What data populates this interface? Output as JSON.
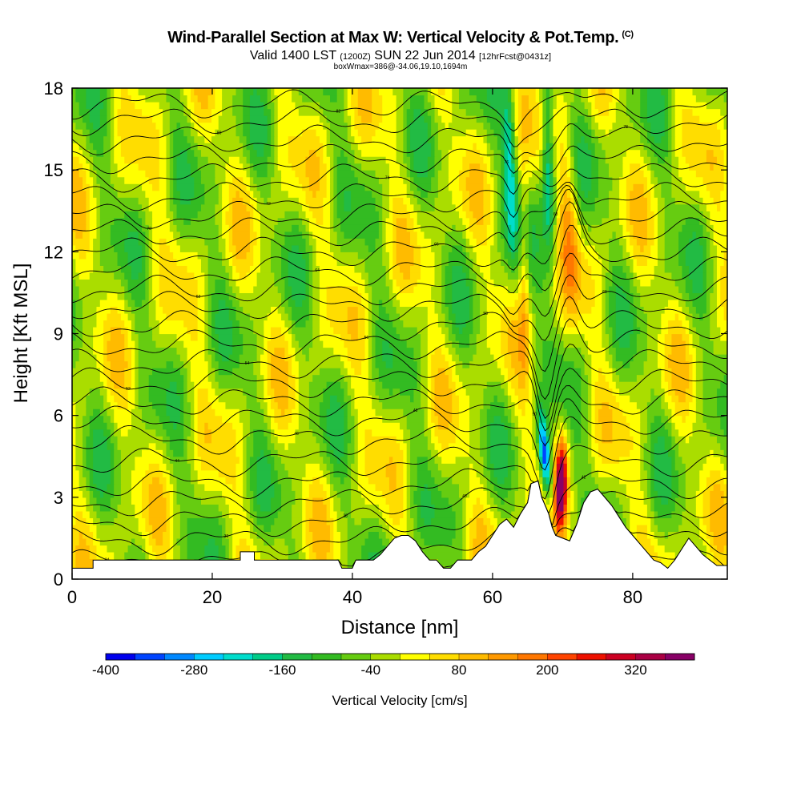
{
  "header": {
    "title": "Wind-Parallel Section at Max W: Vertical Velocity & Pot.Temp.",
    "copyright": "(C)",
    "valid_prefix": "Valid 1400 LST",
    "valid_utc": "(1200Z)",
    "valid_date": "SUN 22 Jun 2014",
    "forecast": "[12hrFcst@0431z]",
    "box_info": "boxWmax=386@-34.06,19.10,1694m"
  },
  "chart_data": {
    "type": "heatmap",
    "xlabel": "Distance [nm]",
    "ylabel": "Height [Kft MSL]",
    "xlim": [
      0,
      93.5
    ],
    "ylim": [
      0,
      18
    ],
    "xticks": [
      "0",
      "20",
      "40",
      "60",
      "80"
    ],
    "xtick_values": [
      0,
      20,
      40,
      60,
      80
    ],
    "yticks": [
      "0",
      "3",
      "6",
      "9",
      "12",
      "15",
      "18"
    ],
    "ytick_values": [
      0,
      3,
      6,
      9,
      12,
      15,
      18
    ],
    "colorbar": {
      "label": "Vertical Velocity [cm/s]",
      "range": [
        -400,
        400
      ],
      "step": 40,
      "tick_labels": [
        "-400",
        "-280",
        "-160",
        "-40",
        "80",
        "200",
        "320"
      ],
      "tick_values": [
        -400,
        -280,
        -160,
        -40,
        80,
        200,
        320
      ],
      "colors": [
        "#0000ee",
        "#0044ff",
        "#0088ff",
        "#00ccff",
        "#00ddcc",
        "#00cc88",
        "#22bb44",
        "#33bb22",
        "#66cc11",
        "#aadd00",
        "#ffff00",
        "#ffdd00",
        "#ffbb00",
        "#ff9900",
        "#ff7700",
        "#ff4400",
        "#ee1100",
        "#cc0022",
        "#aa0044",
        "#880066"
      ]
    },
    "background_value": -20,
    "features": [
      {
        "kind": "downdraft",
        "x": 67.5,
        "z": 4.5,
        "w": -380
      },
      {
        "kind": "updraft",
        "x": 69.8,
        "z": 3.5,
        "w": 386
      },
      {
        "kind": "updraft_column",
        "x": 71,
        "z": 13,
        "w": 120
      },
      {
        "kind": "downdraft_column",
        "x": 62.5,
        "z": 15,
        "w": -180
      },
      {
        "kind": "downdraft_column",
        "x": 68,
        "z": 15,
        "w": -200
      }
    ],
    "terrain": [
      [
        0,
        0.4
      ],
      [
        3,
        0.4
      ],
      [
        3,
        0.7
      ],
      [
        8,
        0.7
      ],
      [
        8,
        0.7
      ],
      [
        16,
        0.7
      ],
      [
        20,
        0.7
      ],
      [
        20,
        0.7
      ],
      [
        22,
        0.7
      ],
      [
        23,
        0.7
      ],
      [
        24,
        0.7
      ],
      [
        24,
        1.0
      ],
      [
        26,
        1.0
      ],
      [
        26,
        0.7
      ],
      [
        30,
        0.7
      ],
      [
        33,
        0.7
      ],
      [
        34,
        0.7
      ],
      [
        36,
        0.7
      ],
      [
        38,
        0.7
      ],
      [
        38.5,
        0.4
      ],
      [
        40,
        0.4
      ],
      [
        40.5,
        0.7
      ],
      [
        43,
        0.7
      ],
      [
        44,
        0.9
      ],
      [
        45,
        1.2
      ],
      [
        46,
        1.5
      ],
      [
        47,
        1.6
      ],
      [
        48,
        1.6
      ],
      [
        49,
        1.4
      ],
      [
        50,
        1.0
      ],
      [
        51,
        0.7
      ],
      [
        52,
        0.7
      ],
      [
        53,
        0.4
      ],
      [
        54,
        0.4
      ],
      [
        55,
        0.7
      ],
      [
        56,
        0.7
      ],
      [
        57,
        0.7
      ],
      [
        58,
        1.0
      ],
      [
        59,
        1.2
      ],
      [
        60,
        1.6
      ],
      [
        61,
        2.0
      ],
      [
        62,
        2.2
      ],
      [
        63,
        1.9
      ],
      [
        64,
        2.4
      ],
      [
        65,
        2.8
      ],
      [
        65.5,
        3.5
      ],
      [
        66.5,
        3.6
      ],
      [
        67,
        3.0
      ],
      [
        68,
        2.4
      ],
      [
        68.5,
        1.9
      ],
      [
        69,
        1.6
      ],
      [
        70,
        1.5
      ],
      [
        71,
        1.4
      ],
      [
        72,
        2.0
      ],
      [
        73,
        2.8
      ],
      [
        74,
        3.2
      ],
      [
        75,
        3.3
      ],
      [
        76,
        3.0
      ],
      [
        77,
        2.7
      ],
      [
        78,
        2.3
      ],
      [
        79,
        1.9
      ],
      [
        80,
        1.6
      ],
      [
        81,
        1.3
      ],
      [
        82,
        1.0
      ],
      [
        83,
        0.7
      ],
      [
        84,
        0.6
      ],
      [
        85,
        0.4
      ],
      [
        86,
        0.7
      ],
      [
        87,
        1.1
      ],
      [
        88,
        1.5
      ],
      [
        89,
        1.2
      ],
      [
        90,
        0.9
      ],
      [
        91,
        0.7
      ],
      [
        92,
        0.5
      ],
      [
        93.5,
        0.5
      ]
    ],
    "theta_contours": [
      {
        "label": "34",
        "z": 0.6
      },
      {
        "label": "36",
        "z": 1.4
      },
      {
        "label": "38",
        "z": 2.1
      },
      {
        "label": "40",
        "z": 2.8
      },
      {
        "label": "42",
        "z": 3.5
      },
      {
        "label": "44",
        "z": 4.3
      },
      {
        "label": "46",
        "z": 5.1
      },
      {
        "label": "48",
        "z": 5.8
      },
      {
        "label": "50",
        "z": 6.5
      },
      {
        "label": "52",
        "z": 7.2
      },
      {
        "label": "54",
        "z": 7.9
      },
      {
        "label": "56",
        "z": 8.6
      },
      {
        "label": "58",
        "z": 9.3
      },
      {
        "label": "60",
        "z": 10.0
      },
      {
        "label": "62",
        "z": 10.6
      },
      {
        "label": "64",
        "z": 11.3
      },
      {
        "label": "66",
        "z": 12.0
      },
      {
        "label": "68",
        "z": 12.7
      },
      {
        "label": "70",
        "z": 13.3
      },
      {
        "label": "72",
        "z": 14.0
      },
      {
        "label": "74",
        "z": 14.7
      },
      {
        "label": "76",
        "z": 15.4
      },
      {
        "label": "78",
        "z": 16.1
      },
      {
        "label": "80",
        "z": 16.8
      },
      {
        "label": "82",
        "z": 17.4
      }
    ]
  }
}
